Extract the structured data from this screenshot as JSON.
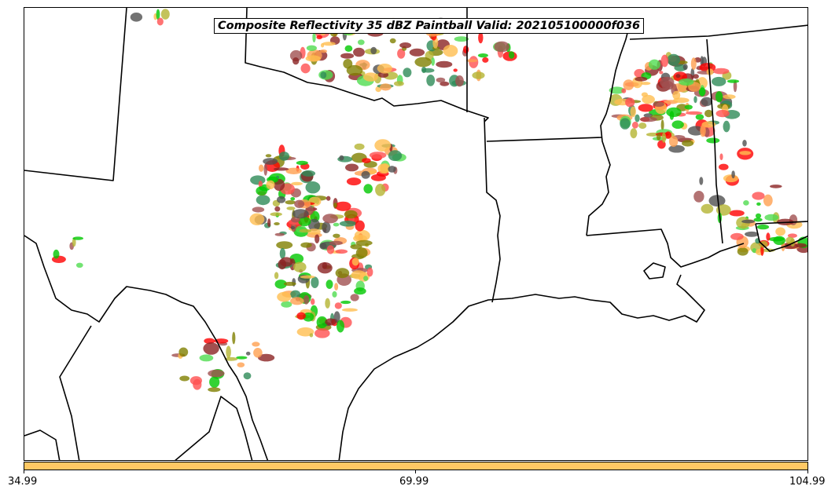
{
  "title": "Composite Reflectivity 35 dBZ Paintball Valid: 202105100000f036",
  "colorbar": {
    "color": "#ffc864",
    "ticks": [
      "34.99",
      "69.99",
      "104.99"
    ]
  },
  "map": {
    "boundary_color": "#000000",
    "paintball_colors": [
      "#8b2323",
      "#a05050",
      "#808000",
      "#b4b432",
      "#ffa050",
      "#ff5050",
      "#00c800",
      "#50dc50",
      "#2e8b57",
      "#505050",
      "#ffbe50",
      "#ff0000"
    ]
  }
}
